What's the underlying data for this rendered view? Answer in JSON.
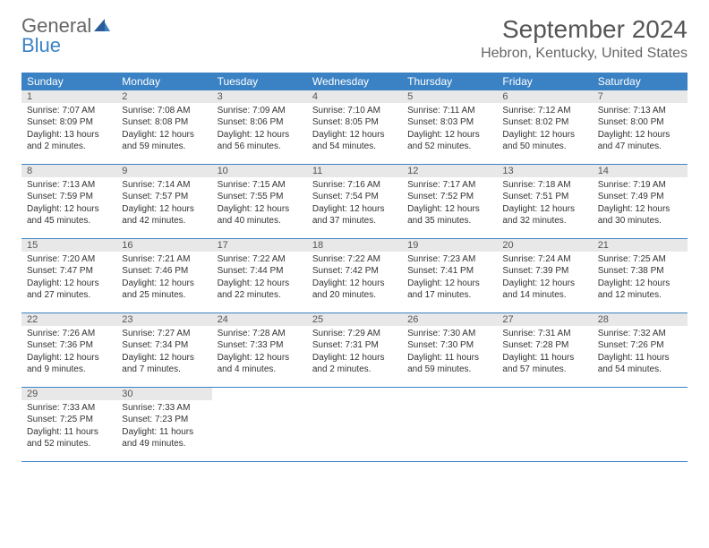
{
  "logo": {
    "part1": "General",
    "part2": "Blue"
  },
  "title": "September 2024",
  "location": "Hebron, Kentucky, United States",
  "colors": {
    "header_bg": "#3b82c4",
    "header_fg": "#ffffff",
    "daynum_bg": "#e8e8e8",
    "text": "#333333",
    "title_color": "#555555",
    "border": "#3b82c4"
  },
  "weekdays": [
    "Sunday",
    "Monday",
    "Tuesday",
    "Wednesday",
    "Thursday",
    "Friday",
    "Saturday"
  ],
  "days": [
    {
      "n": "1",
      "sr": "Sunrise: 7:07 AM",
      "ss": "Sunset: 8:09 PM",
      "dl": "Daylight: 13 hours and 2 minutes."
    },
    {
      "n": "2",
      "sr": "Sunrise: 7:08 AM",
      "ss": "Sunset: 8:08 PM",
      "dl": "Daylight: 12 hours and 59 minutes."
    },
    {
      "n": "3",
      "sr": "Sunrise: 7:09 AM",
      "ss": "Sunset: 8:06 PM",
      "dl": "Daylight: 12 hours and 56 minutes."
    },
    {
      "n": "4",
      "sr": "Sunrise: 7:10 AM",
      "ss": "Sunset: 8:05 PM",
      "dl": "Daylight: 12 hours and 54 minutes."
    },
    {
      "n": "5",
      "sr": "Sunrise: 7:11 AM",
      "ss": "Sunset: 8:03 PM",
      "dl": "Daylight: 12 hours and 52 minutes."
    },
    {
      "n": "6",
      "sr": "Sunrise: 7:12 AM",
      "ss": "Sunset: 8:02 PM",
      "dl": "Daylight: 12 hours and 50 minutes."
    },
    {
      "n": "7",
      "sr": "Sunrise: 7:13 AM",
      "ss": "Sunset: 8:00 PM",
      "dl": "Daylight: 12 hours and 47 minutes."
    },
    {
      "n": "8",
      "sr": "Sunrise: 7:13 AM",
      "ss": "Sunset: 7:59 PM",
      "dl": "Daylight: 12 hours and 45 minutes."
    },
    {
      "n": "9",
      "sr": "Sunrise: 7:14 AM",
      "ss": "Sunset: 7:57 PM",
      "dl": "Daylight: 12 hours and 42 minutes."
    },
    {
      "n": "10",
      "sr": "Sunrise: 7:15 AM",
      "ss": "Sunset: 7:55 PM",
      "dl": "Daylight: 12 hours and 40 minutes."
    },
    {
      "n": "11",
      "sr": "Sunrise: 7:16 AM",
      "ss": "Sunset: 7:54 PM",
      "dl": "Daylight: 12 hours and 37 minutes."
    },
    {
      "n": "12",
      "sr": "Sunrise: 7:17 AM",
      "ss": "Sunset: 7:52 PM",
      "dl": "Daylight: 12 hours and 35 minutes."
    },
    {
      "n": "13",
      "sr": "Sunrise: 7:18 AM",
      "ss": "Sunset: 7:51 PM",
      "dl": "Daylight: 12 hours and 32 minutes."
    },
    {
      "n": "14",
      "sr": "Sunrise: 7:19 AM",
      "ss": "Sunset: 7:49 PM",
      "dl": "Daylight: 12 hours and 30 minutes."
    },
    {
      "n": "15",
      "sr": "Sunrise: 7:20 AM",
      "ss": "Sunset: 7:47 PM",
      "dl": "Daylight: 12 hours and 27 minutes."
    },
    {
      "n": "16",
      "sr": "Sunrise: 7:21 AM",
      "ss": "Sunset: 7:46 PM",
      "dl": "Daylight: 12 hours and 25 minutes."
    },
    {
      "n": "17",
      "sr": "Sunrise: 7:22 AM",
      "ss": "Sunset: 7:44 PM",
      "dl": "Daylight: 12 hours and 22 minutes."
    },
    {
      "n": "18",
      "sr": "Sunrise: 7:22 AM",
      "ss": "Sunset: 7:42 PM",
      "dl": "Daylight: 12 hours and 20 minutes."
    },
    {
      "n": "19",
      "sr": "Sunrise: 7:23 AM",
      "ss": "Sunset: 7:41 PM",
      "dl": "Daylight: 12 hours and 17 minutes."
    },
    {
      "n": "20",
      "sr": "Sunrise: 7:24 AM",
      "ss": "Sunset: 7:39 PM",
      "dl": "Daylight: 12 hours and 14 minutes."
    },
    {
      "n": "21",
      "sr": "Sunrise: 7:25 AM",
      "ss": "Sunset: 7:38 PM",
      "dl": "Daylight: 12 hours and 12 minutes."
    },
    {
      "n": "22",
      "sr": "Sunrise: 7:26 AM",
      "ss": "Sunset: 7:36 PM",
      "dl": "Daylight: 12 hours and 9 minutes."
    },
    {
      "n": "23",
      "sr": "Sunrise: 7:27 AM",
      "ss": "Sunset: 7:34 PM",
      "dl": "Daylight: 12 hours and 7 minutes."
    },
    {
      "n": "24",
      "sr": "Sunrise: 7:28 AM",
      "ss": "Sunset: 7:33 PM",
      "dl": "Daylight: 12 hours and 4 minutes."
    },
    {
      "n": "25",
      "sr": "Sunrise: 7:29 AM",
      "ss": "Sunset: 7:31 PM",
      "dl": "Daylight: 12 hours and 2 minutes."
    },
    {
      "n": "26",
      "sr": "Sunrise: 7:30 AM",
      "ss": "Sunset: 7:30 PM",
      "dl": "Daylight: 11 hours and 59 minutes."
    },
    {
      "n": "27",
      "sr": "Sunrise: 7:31 AM",
      "ss": "Sunset: 7:28 PM",
      "dl": "Daylight: 11 hours and 57 minutes."
    },
    {
      "n": "28",
      "sr": "Sunrise: 7:32 AM",
      "ss": "Sunset: 7:26 PM",
      "dl": "Daylight: 11 hours and 54 minutes."
    },
    {
      "n": "29",
      "sr": "Sunrise: 7:33 AM",
      "ss": "Sunset: 7:25 PM",
      "dl": "Daylight: 11 hours and 52 minutes."
    },
    {
      "n": "30",
      "sr": "Sunrise: 7:33 AM",
      "ss": "Sunset: 7:23 PM",
      "dl": "Daylight: 11 hours and 49 minutes."
    }
  ]
}
